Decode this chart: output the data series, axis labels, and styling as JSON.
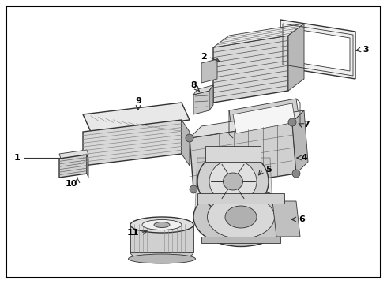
{
  "background_color": "#ffffff",
  "border_color": "#000000",
  "line_color": "#333333",
  "label_color": "#000000",
  "gray_light": "#e8e8e8",
  "gray_mid": "#cccccc",
  "gray_dark": "#aaaaaa",
  "gray_fill": "#d4d4d4"
}
